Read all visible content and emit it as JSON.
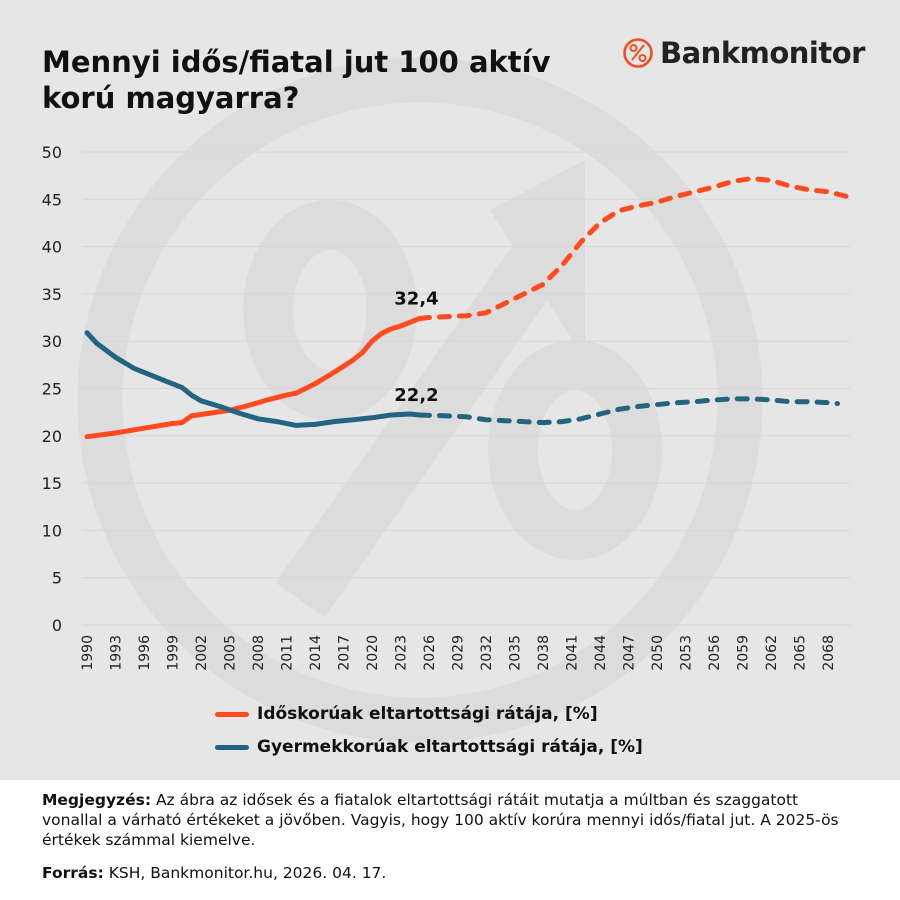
{
  "title": "Mennyi idős/fiatal jut 100 aktív korú magyarra?",
  "logo": {
    "text": "Bankmonitor",
    "color": "#f04e23"
  },
  "note": {
    "label": "Megjegyzés:",
    "text": "Az ábra az idősek és a fiatalok eltartottsági rátáit mutatja a múltban és szaggatott vonallal a várható értékeket a jövőben. Vagyis, hogy 100 aktív korúra mennyi idős/fiatal jut. A 2025-ös értékek számmal kiemelve."
  },
  "source": {
    "label": "Forrás:",
    "text": "KSH, Bankmonitor.hu, 2026. 04. 17."
  },
  "chart_data": {
    "type": "line",
    "title": "Mennyi idős/fiatal jut 100 aktív korú magyarra?",
    "xlabel": "",
    "ylabel": "",
    "ylim": [
      0,
      50
    ],
    "xlim": [
      1990,
      2070
    ],
    "yticks": [
      "0",
      "5",
      "10",
      "15",
      "20",
      "25",
      "30",
      "35",
      "40",
      "45",
      "50"
    ],
    "xticks": [
      "1990",
      "1993",
      "1996",
      "1999",
      "2002",
      "2005",
      "2008",
      "2011",
      "2014",
      "2017",
      "2020",
      "2023",
      "2026",
      "2029",
      "2032",
      "2035",
      "2038",
      "2041",
      "2044",
      "2047",
      "2050",
      "2053",
      "2056",
      "2059",
      "2062",
      "2065",
      "2068"
    ],
    "grid": true,
    "legend_placement": "bottom",
    "projection_start": 2025,
    "series": [
      {
        "name": "Időskorúak eltartottsági rátája, [%]",
        "color": "#ff4b1f",
        "x": [
          1990,
          1993,
          1996,
          1999,
          2000,
          2001,
          2003,
          2005,
          2007,
          2009,
          2011,
          2012,
          2014,
          2016,
          2018,
          2019,
          2020,
          2021,
          2022,
          2023,
          2024,
          2025,
          2026,
          2028,
          2030,
          2032,
          2034,
          2036,
          2038,
          2040,
          2042,
          2044,
          2046,
          2048,
          2050,
          2052,
          2054,
          2056,
          2058,
          2060,
          2062,
          2064,
          2066,
          2068,
          2070
        ],
        "values": [
          19.9,
          20.3,
          20.8,
          21.3,
          21.4,
          22.1,
          22.4,
          22.7,
          23.2,
          23.8,
          24.3,
          24.5,
          25.5,
          26.7,
          28.0,
          28.8,
          30.0,
          30.8,
          31.3,
          31.6,
          32.0,
          32.4,
          32.5,
          32.6,
          32.7,
          33.0,
          34.0,
          35.0,
          36.0,
          38.0,
          40.5,
          42.5,
          43.8,
          44.3,
          44.7,
          45.3,
          45.8,
          46.3,
          46.9,
          47.2,
          47.0,
          46.4,
          46.0,
          45.8,
          45.3
        ],
        "label": "32,4"
      },
      {
        "name": "Gyermekkorúak eltartottsági rátája, [%]",
        "color": "#236480",
        "x": [
          1990,
          1991,
          1993,
          1995,
          1997,
          1999,
          2000,
          2001,
          2002,
          2004,
          2006,
          2008,
          2010,
          2012,
          2014,
          2016,
          2018,
          2020,
          2022,
          2024,
          2025,
          2028,
          2030,
          2032,
          2034,
          2036,
          2038,
          2040,
          2042,
          2044,
          2046,
          2048,
          2050,
          2052,
          2054,
          2056,
          2058,
          2060,
          2062,
          2064,
          2066,
          2068,
          2069
        ],
        "values": [
          30.9,
          29.8,
          28.3,
          27.1,
          26.3,
          25.5,
          25.1,
          24.3,
          23.7,
          23.1,
          22.4,
          21.8,
          21.5,
          21.1,
          21.2,
          21.5,
          21.7,
          21.9,
          22.2,
          22.3,
          22.2,
          22.1,
          22.0,
          21.7,
          21.6,
          21.5,
          21.4,
          21.5,
          21.8,
          22.3,
          22.8,
          23.1,
          23.3,
          23.5,
          23.6,
          23.8,
          23.9,
          23.9,
          23.8,
          23.6,
          23.6,
          23.5,
          23.4
        ],
        "label": "22,2"
      }
    ]
  }
}
